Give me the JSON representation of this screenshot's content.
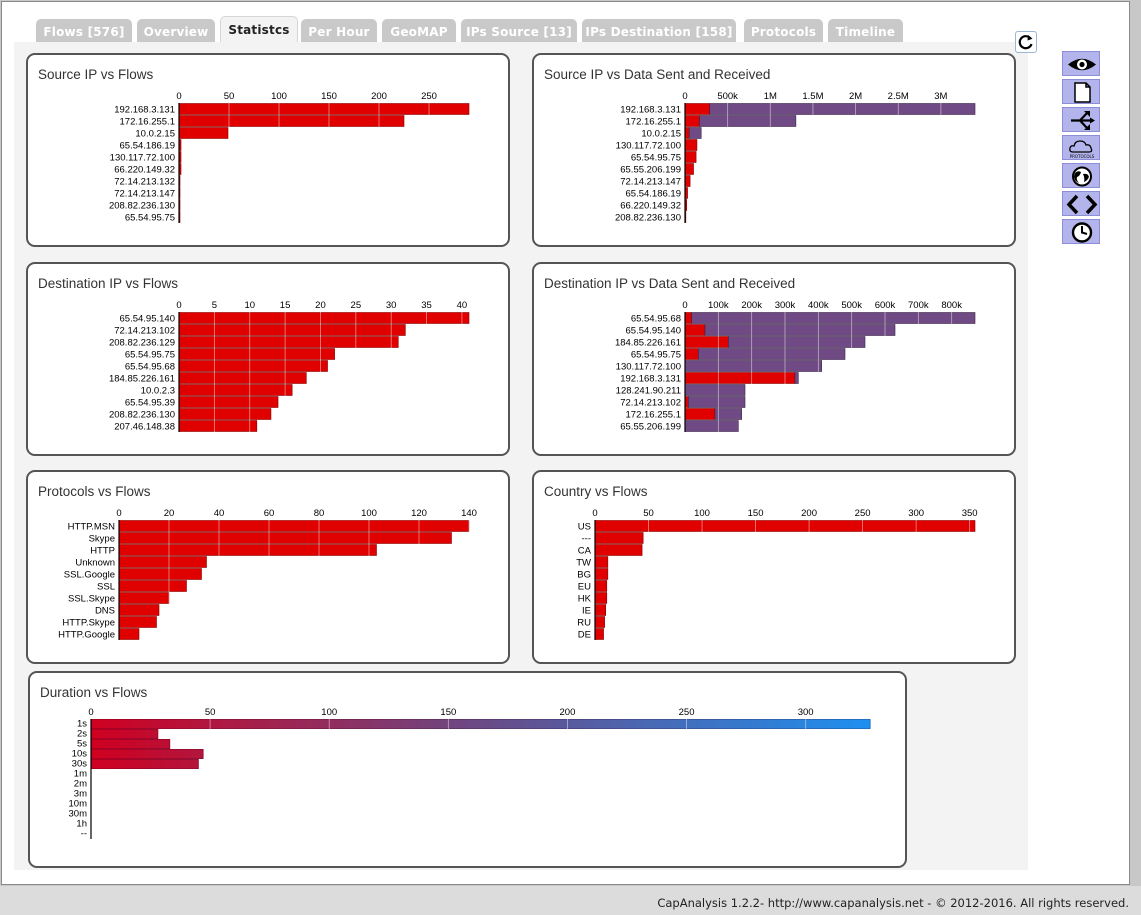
{
  "tabs": [
    {
      "label": "Flows [576]",
      "active": false
    },
    {
      "label": "Overview",
      "active": false
    },
    {
      "label": "Statistcs",
      "active": true
    },
    {
      "label": "Per Hour",
      "active": false
    },
    {
      "label": "GeoMAP",
      "active": false
    },
    {
      "label": "IPs Source [13]",
      "active": false
    },
    {
      "label": "IPs Destination [158]",
      "active": false
    },
    {
      "label": "Protocols",
      "active": false
    },
    {
      "label": "Timeline",
      "active": false
    }
  ],
  "refresh_icon": "refresh-icon",
  "side_toolbar": [
    {
      "icon": "eye-icon"
    },
    {
      "icon": "document-icon"
    },
    {
      "icon": "branch-icon"
    },
    {
      "icon": "cloud-protocols-icon",
      "text": "PROTOCOLS"
    },
    {
      "icon": "globe-icon"
    },
    {
      "icon": "code-brackets-icon"
    },
    {
      "icon": "clock-icon"
    }
  ],
  "colors": {
    "red": "#e00000",
    "purple": "#6f4a85",
    "tab_gray": "#c9c9c9",
    "side_button": "#b4b4ec"
  },
  "footer": {
    "text": "CapAnalysis 1.2.2- http://www.capanalysis.net - © 2012-2016. All rights reserved."
  },
  "panels": {
    "src_flows": {
      "title": "Source IP vs Flows"
    },
    "src_data": {
      "title": "Source IP vs Data Sent and Received"
    },
    "dst_flows": {
      "title": "Destination IP vs Flows"
    },
    "dst_data": {
      "title": "Destination IP vs Data Sent and Received"
    },
    "proto_flows": {
      "title": "Protocols vs Flows"
    },
    "country_flows": {
      "title": "Country vs Flows"
    },
    "duration_flows": {
      "title": "Duration vs Flows"
    }
  },
  "chart_data": [
    {
      "id": "src_flows",
      "type": "bar",
      "orientation": "horizontal",
      "title": "Source IP vs Flows",
      "categories": [
        "192.168.3.131",
        "172.16.255.1",
        "10.0.2.15",
        "65.54.186.19",
        "130.117.72.100",
        "66.220.149.32",
        "72.14.213.132",
        "72.14.213.147",
        "208.82.236.130",
        "65.54.95.75"
      ],
      "series": [
        {
          "values": [
            290,
            225,
            49,
            2,
            2,
            2,
            1,
            1,
            1,
            1
          ],
          "color": "#e00000"
        }
      ],
      "xlim": [
        0,
        290
      ],
      "ticks": [
        0,
        50,
        100,
        150,
        200,
        250
      ]
    },
    {
      "id": "src_data",
      "type": "bar",
      "orientation": "horizontal",
      "stacked": true,
      "title": "Source IP vs Data Sent and Received",
      "categories": [
        "192.168.3.131",
        "172.16.255.1",
        "10.0.2.15",
        "130.117.72.100",
        "65.54.95.75",
        "65.55.206.199",
        "72.14.213.147",
        "65.54.186.19",
        "66.220.149.32",
        "208.82.236.130"
      ],
      "series": [
        {
          "values": [
            290000,
            170000,
            50000,
            140000,
            130000,
            100000,
            60000,
            30000,
            20000,
            10000
          ],
          "color": "#e00000"
        },
        {
          "values": [
            3110000,
            1130000,
            140000,
            0,
            0,
            0,
            0,
            0,
            0,
            0
          ],
          "color": "#6f4a85"
        }
      ],
      "xlim": [
        0,
        3400000
      ],
      "ticks": [
        {
          "v": 0,
          "label": "0"
        },
        {
          "v": 500000,
          "label": "500k"
        },
        {
          "v": 1000000,
          "label": "1M"
        },
        {
          "v": 1500000,
          "label": "1.5M"
        },
        {
          "v": 2000000,
          "label": "2M"
        },
        {
          "v": 2500000,
          "label": "2.5M"
        },
        {
          "v": 3000000,
          "label": "3M"
        }
      ]
    },
    {
      "id": "dst_flows",
      "type": "bar",
      "orientation": "horizontal",
      "title": "Destination IP vs Flows",
      "categories": [
        "65.54.95.140",
        "72.14.213.102",
        "208.82.236.129",
        "65.54.95.75",
        "65.54.95.68",
        "184.85.226.161",
        "10.0.2.3",
        "65.54.95.39",
        "208.82.236.130",
        "207.46.148.38"
      ],
      "series": [
        {
          "values": [
            41,
            32,
            31,
            22,
            21,
            18,
            16,
            14,
            13,
            11
          ],
          "color": "#e00000"
        }
      ],
      "xlim": [
        0,
        41
      ],
      "ticks": [
        0,
        5,
        10,
        15,
        20,
        25,
        30,
        35,
        40
      ]
    },
    {
      "id": "dst_data",
      "type": "bar",
      "orientation": "horizontal",
      "stacked": true,
      "title": "Destination IP vs Data Sent and Received",
      "categories": [
        "65.54.95.68",
        "65.54.95.140",
        "184.85.226.161",
        "65.54.95.75",
        "130.117.72.100",
        "192.168.3.131",
        "128.241.90.211",
        "72.14.213.102",
        "172.16.255.1",
        "65.55.206.199"
      ],
      "series": [
        {
          "values": [
            20000,
            60000,
            130000,
            40000,
            0,
            330000,
            0,
            10000,
            90000,
            0
          ],
          "color": "#e00000"
        },
        {
          "values": [
            850000,
            570000,
            410000,
            440000,
            410000,
            10000,
            180000,
            170000,
            80000,
            160000
          ],
          "color": "#6f4a85"
        }
      ],
      "xlim": [
        0,
        870000
      ],
      "ticks": [
        {
          "v": 0,
          "label": "0"
        },
        {
          "v": 100000,
          "label": "100k"
        },
        {
          "v": 200000,
          "label": "200k"
        },
        {
          "v": 300000,
          "label": "300k"
        },
        {
          "v": 400000,
          "label": "400k"
        },
        {
          "v": 500000,
          "label": "500k"
        },
        {
          "v": 600000,
          "label": "600k"
        },
        {
          "v": 700000,
          "label": "700k"
        },
        {
          "v": 800000,
          "label": "800k"
        }
      ]
    },
    {
      "id": "proto_flows",
      "type": "bar",
      "orientation": "horizontal",
      "title": "Protocols vs Flows",
      "categories": [
        "HTTP.MSN",
        "Skype",
        "HTTP",
        "Unknown",
        "SSL.Google",
        "SSL",
        "SSL.Skype",
        "DNS",
        "HTTP.Skype",
        "HTTP.Google"
      ],
      "series": [
        {
          "values": [
            140,
            133,
            103,
            35,
            33,
            27,
            20,
            16,
            15,
            8
          ],
          "color": "#e00000"
        }
      ],
      "xlim": [
        0,
        140
      ],
      "ticks": [
        0,
        20,
        40,
        60,
        80,
        100,
        120,
        140
      ]
    },
    {
      "id": "country_flows",
      "type": "bar",
      "orientation": "horizontal",
      "title": "Country vs Flows",
      "categories": [
        "US",
        "---",
        "CA",
        "TW",
        "BG",
        "EU",
        "HK",
        "IE",
        "RU",
        "DE"
      ],
      "series": [
        {
          "values": [
            355,
            45,
            44,
            12,
            12,
            11,
            11,
            10,
            9,
            8
          ],
          "color": "#e00000"
        }
      ],
      "xlim": [
        0,
        355
      ],
      "ticks": [
        0,
        50,
        100,
        150,
        200,
        250,
        300,
        350
      ]
    },
    {
      "id": "duration_flows",
      "type": "bar",
      "orientation": "horizontal",
      "stacked": true,
      "title": "Duration vs Flows",
      "categories": [
        "1s",
        "2s",
        "5s",
        "10s",
        "30s",
        "1m",
        "2m",
        "3m",
        "10m",
        "30m",
        "1h",
        "--"
      ],
      "series": [
        {
          "values": [
            327,
            28,
            33,
            47,
            45,
            0,
            0,
            0,
            0,
            0,
            0,
            0
          ],
          "gradient": [
            "#d00020",
            "#6a4a86",
            "#1e90f0"
          ]
        }
      ],
      "xlim": [
        0,
        327
      ],
      "ticks": [
        0,
        50,
        100,
        150,
        200,
        250,
        300
      ]
    }
  ]
}
